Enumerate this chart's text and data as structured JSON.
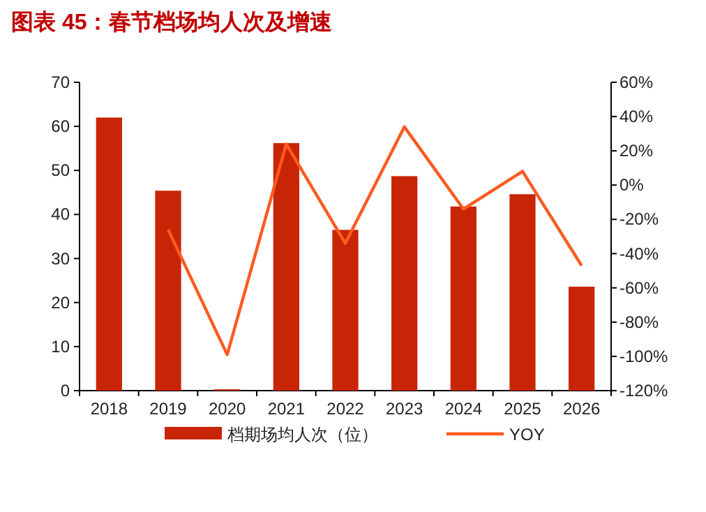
{
  "chart_data": {
    "type": "bar",
    "title": "图表 45：春节档场均人次及增速",
    "categories": [
      "2018",
      "2019",
      "2020",
      "2021",
      "2022",
      "2023",
      "2024",
      "2025",
      "2026"
    ],
    "series": [
      {
        "name": "档期场均人次（位）",
        "color": "#c82506",
        "values": [
          62,
          45.4,
          0.3,
          56.2,
          36.5,
          48.7,
          41.8,
          44.6,
          23.6
        ]
      },
      {
        "name": "YOY",
        "type": "line",
        "axis": "y2",
        "color": "#ff5a1f",
        "values": [
          null,
          -26,
          -99,
          24,
          -34,
          34,
          -14,
          8,
          -47
        ]
      }
    ],
    "ylim": [
      0,
      70
    ],
    "yticks": [
      0,
      10,
      20,
      30,
      40,
      50,
      60,
      70
    ],
    "y2lim": [
      -120,
      60
    ],
    "y2ticks": [
      {
        "value": -120,
        "label": "-120%"
      },
      {
        "value": -100,
        "label": "-100%"
      },
      {
        "value": -80,
        "label": "-80%"
      },
      {
        "value": -60,
        "label": "-60%"
      },
      {
        "value": -40,
        "label": "-40%"
      },
      {
        "value": -20,
        "label": "-20%"
      },
      {
        "value": 0,
        "label": "0%"
      },
      {
        "value": 20,
        "label": "20%"
      },
      {
        "value": 40,
        "label": "40%"
      },
      {
        "value": 60,
        "label": "60%"
      }
    ],
    "grid": false,
    "legend": "bottom"
  }
}
